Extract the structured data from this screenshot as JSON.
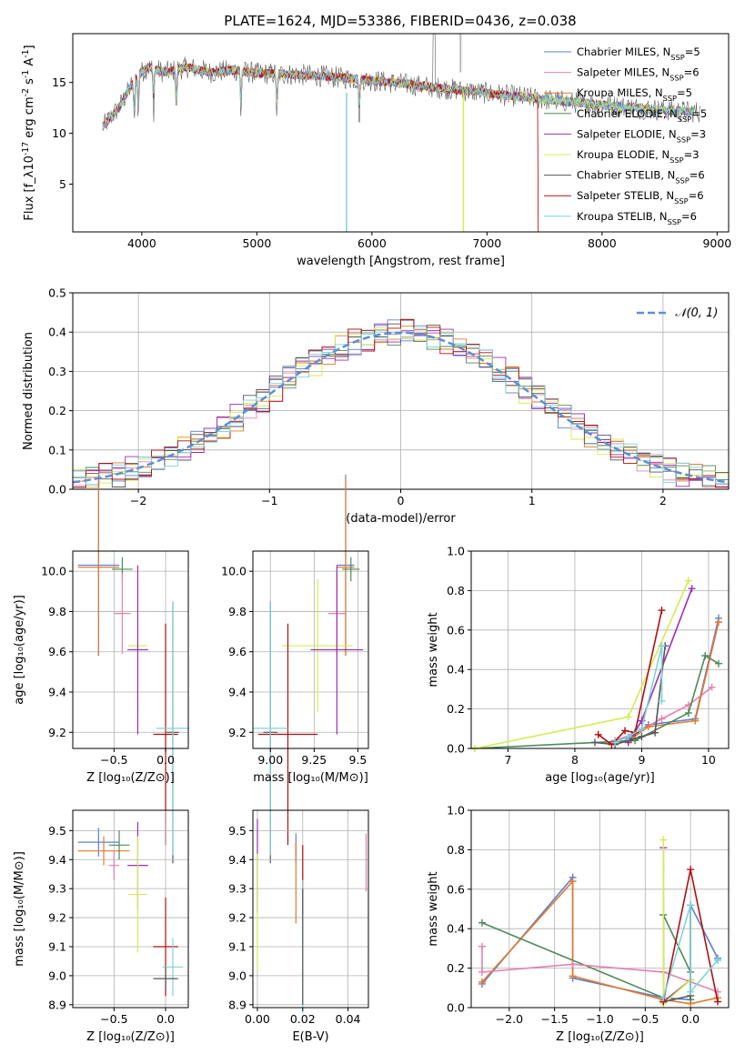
{
  "figure_title": "PLATE=1624, MJD=53386, FIBERID=0436, z=0.038",
  "chart_data": [
    {
      "id": "spectrum",
      "type": "line",
      "title": "PLATE=1624, MJD=53386, FIBERID=0436, z=0.038",
      "xlabel": "wavelength [Angstrom, rest frame]",
      "ylabel": "Flux [f_λ10^-17 erg cm^-2 s^-1 A^-1]",
      "xlim": [
        3400,
        9100
      ],
      "ylim": [
        0.3,
        19.8
      ],
      "xticks": [
        4000,
        5000,
        6000,
        7000,
        8000,
        9000
      ],
      "yticks": [
        5,
        10,
        15
      ],
      "grid": false,
      "legend_position": "top-right",
      "series": [
        {
          "name": "Chabrier MILES, N_SSP=5",
          "color": "#5b7fd6"
        },
        {
          "name": "Salpeter MILES, N_SSP=6",
          "color": "#e580b1"
        },
        {
          "name": "Kroupa MILES, N_SSP=5",
          "color": "#e27a2d"
        },
        {
          "name": "Chabrier ELODIE, N_SSP=5",
          "color": "#4f8a57"
        },
        {
          "name": "Salpeter ELODIE, N_SSP=3",
          "color": "#9c2fb5"
        },
        {
          "name": "Kroupa ELODIE, N_SSP=3",
          "color": "#d6eb4e"
        },
        {
          "name": "Chabrier STELIB, N_SSP=6",
          "color": "#555555"
        },
        {
          "name": "Salpeter STELIB, N_SSP=6",
          "color": "#b01010"
        },
        {
          "name": "Kroupa STELIB, N_SSP=6",
          "color": "#7fd3da"
        }
      ],
      "continuum": {
        "x": [
          3650,
          3800,
          3950,
          4050,
          4200,
          4400,
          4600,
          4800,
          5000,
          5300,
          5600,
          6000,
          6400,
          6800,
          7200,
          7600,
          8000,
          8400,
          8800
        ],
        "y": [
          10.5,
          12.5,
          15.5,
          16.5,
          16.0,
          16.5,
          16.0,
          16.2,
          15.9,
          15.8,
          15.6,
          15.2,
          14.7,
          14.2,
          13.7,
          13.2,
          12.8,
          12.4,
          12.1
        ]
      }
    },
    {
      "id": "residuals",
      "type": "line",
      "xlabel": "(data-model)/error",
      "ylabel": "Normed distribution",
      "xlim": [
        -2.5,
        2.5
      ],
      "ylim": [
        0.0,
        0.5
      ],
      "xticks": [
        -2,
        -1,
        0,
        1,
        2
      ],
      "yticks": [
        0.0,
        0.1,
        0.2,
        0.3,
        0.4,
        0.5
      ],
      "grid": true,
      "legend_position": "top-right",
      "reference_curve": {
        "name": "N(0,1)",
        "mean": 0,
        "sigma": 1,
        "color": "#5b8fd6",
        "style": "dashed"
      }
    },
    {
      "id": "age-vs-Z",
      "type": "scatter",
      "xlabel": "Z [log10(Z/Z⊙)]",
      "ylabel": "age [log10(age/yr)]",
      "xlim": [
        -0.9,
        0.22
      ],
      "ylim": [
        9.12,
        10.1
      ],
      "xticks": [
        -0.5,
        0.0
      ],
      "yticks": [
        9.2,
        9.4,
        9.6,
        9.8,
        10.0
      ],
      "grid": true,
      "points": [
        {
          "color": "#5b7fd6",
          "x": -0.65,
          "xerr": 0.2,
          "y": 10.03,
          "yerr": 0.45
        },
        {
          "color": "#e27a2d",
          "x": -0.65,
          "xerr": 0.2,
          "y": 10.02,
          "yerr": 0.44
        },
        {
          "color": "#4f8a57",
          "x": -0.42,
          "xerr": 0.1,
          "y": 10.01,
          "yerr": 0.06
        },
        {
          "color": "#e580b1",
          "x": -0.42,
          "xerr": 0.08,
          "y": 9.79,
          "yerr": 0.2
        },
        {
          "color": "#d6eb4e",
          "x": -0.27,
          "xerr": 0.09,
          "y": 9.63,
          "yerr": 0.33
        },
        {
          "color": "#9c2fb5",
          "x": -0.27,
          "xerr": 0.1,
          "y": 9.61,
          "yerr": 0.42
        },
        {
          "color": "#b01010",
          "x": 0.0,
          "xerr": 0.12,
          "y": 9.19,
          "yerr": 0.55
        },
        {
          "color": "#555555",
          "x": 0.07,
          "xerr": 0.06,
          "y": 9.2,
          "yerr": 0.65
        },
        {
          "color": "#7fd3da",
          "x": 0.07,
          "xerr": 0.16,
          "y": 9.22,
          "yerr": 0.63
        }
      ]
    },
    {
      "id": "age-vs-mass",
      "type": "scatter",
      "xlabel": "mass [log10(M/M⊙)]",
      "ylabel": "",
      "xlim": [
        8.9,
        9.56
      ],
      "ylim": [
        9.12,
        10.1
      ],
      "xticks": [
        9.0,
        9.25,
        9.5
      ],
      "yticks": [
        9.2,
        9.4,
        9.6,
        9.8,
        10.0
      ],
      "grid": true,
      "points": [
        {
          "color": "#5b7fd6",
          "x": 9.43,
          "xerr": 0.05,
          "y": 10.03,
          "yerr": 0.45
        },
        {
          "color": "#e27a2d",
          "x": 9.43,
          "xerr": 0.05,
          "y": 10.02,
          "yerr": 0.44
        },
        {
          "color": "#4f8a57",
          "x": 9.46,
          "xerr": 0.05,
          "y": 10.01,
          "yerr": 0.06
        },
        {
          "color": "#e580b1",
          "x": 9.38,
          "xerr": 0.05,
          "y": 9.79,
          "yerr": 0.2
        },
        {
          "color": "#d6eb4e",
          "x": 9.27,
          "xerr": 0.2,
          "y": 9.63,
          "yerr": 0.33
        },
        {
          "color": "#9c2fb5",
          "x": 9.38,
          "xerr": 0.15,
          "y": 9.61,
          "yerr": 0.42
        },
        {
          "color": "#b01010",
          "x": 9.1,
          "xerr": 0.17,
          "y": 9.19,
          "yerr": 0.55
        },
        {
          "color": "#555555",
          "x": 9.0,
          "xerr": 0.04,
          "y": 9.2,
          "yerr": 0.65
        },
        {
          "color": "#7fd3da",
          "x": 9.0,
          "xerr": 0.1,
          "y": 9.22,
          "yerr": 0.63
        }
      ]
    },
    {
      "id": "mass-weight-vs-age",
      "type": "line",
      "xlabel": "age [log10(age/yr)]",
      "ylabel": "mass weight",
      "xlim": [
        6.45,
        10.3
      ],
      "ylim": [
        0.0,
        1.0
      ],
      "xticks": [
        7,
        8,
        9,
        10
      ],
      "yticks": [
        0.0,
        0.2,
        0.4,
        0.6,
        0.8,
        1.0
      ],
      "grid": true,
      "series": [
        {
          "color": "#5b7fd6",
          "x": [
            8.8,
            8.85,
            9.1,
            9.8,
            10.15
          ],
          "y": [
            0.05,
            0.06,
            0.12,
            0.15,
            0.66
          ]
        },
        {
          "color": "#e580b1",
          "x": [
            8.6,
            8.85,
            9.3,
            9.7,
            10.05
          ],
          "y": [
            0.04,
            0.07,
            0.15,
            0.22,
            0.31
          ]
        },
        {
          "color": "#e27a2d",
          "x": [
            8.8,
            8.85,
            9.1,
            9.8,
            10.15
          ],
          "y": [
            0.04,
            0.05,
            0.11,
            0.14,
            0.64
          ]
        },
        {
          "color": "#4f8a57",
          "x": [
            6.5,
            8.9,
            9.7,
            9.95,
            10.15
          ],
          "y": [
            0.0,
            0.04,
            0.18,
            0.47,
            0.43
          ]
        },
        {
          "color": "#9c2fb5",
          "x": [
            8.8,
            9.0,
            9.75
          ],
          "y": [
            0.03,
            0.14,
            0.81
          ]
        },
        {
          "color": "#d6eb4e",
          "x": [
            6.5,
            8.8,
            9.7
          ],
          "y": [
            0.0,
            0.16,
            0.85
          ]
        },
        {
          "color": "#555555",
          "x": [
            8.3,
            8.6,
            8.8,
            9.0,
            9.2,
            9.35
          ],
          "y": [
            0.03,
            0.02,
            0.04,
            0.06,
            0.08,
            0.52
          ]
        },
        {
          "color": "#b01010",
          "x": [
            8.35,
            8.55,
            8.75,
            8.9,
            9.3
          ],
          "y": [
            0.07,
            0.02,
            0.09,
            0.08,
            0.7
          ]
        },
        {
          "color": "#7fd3da",
          "x": [
            8.6,
            8.8,
            9.0,
            9.3,
            9.3
          ],
          "y": [
            0.03,
            0.06,
            0.1,
            0.52,
            0.24
          ]
        }
      ]
    },
    {
      "id": "mass-vs-Z",
      "type": "scatter",
      "xlabel": "Z [log10(Z/Z⊙)]",
      "ylabel": "mass [log10(M/M⊙)]",
      "xlim": [
        -0.9,
        0.22
      ],
      "ylim": [
        8.89,
        9.57
      ],
      "xticks": [
        -0.5,
        0.0
      ],
      "yticks": [
        8.9,
        9.0,
        9.1,
        9.2,
        9.3,
        9.4,
        9.5
      ],
      "grid": true,
      "points": [
        {
          "color": "#5b7fd6",
          "x": -0.65,
          "xerr": 0.2,
          "y": 9.46,
          "yerr": 0.05
        },
        {
          "color": "#e27a2d",
          "x": -0.6,
          "xerr": 0.25,
          "y": 9.43,
          "yerr": 0.05
        },
        {
          "color": "#4f8a57",
          "x": -0.45,
          "xerr": 0.1,
          "y": 9.45,
          "yerr": 0.05
        },
        {
          "color": "#e580b1",
          "x": -0.5,
          "xerr": 0.05,
          "y": 9.38,
          "yerr": 0.05
        },
        {
          "color": "#9c2fb5",
          "x": -0.27,
          "xerr": 0.1,
          "y": 9.38,
          "yerr": 0.15
        },
        {
          "color": "#d6eb4e",
          "x": -0.27,
          "xerr": 0.09,
          "y": 9.28,
          "yerr": 0.2
        },
        {
          "color": "#b01010",
          "x": 0.0,
          "xerr": 0.12,
          "y": 9.1,
          "yerr": 0.17
        },
        {
          "color": "#7fd3da",
          "x": 0.07,
          "xerr": 0.1,
          "y": 9.03,
          "yerr": 0.1
        },
        {
          "color": "#555555",
          "x": 0.0,
          "xerr": 0.12,
          "y": 8.99,
          "yerr": 0.04
        }
      ]
    },
    {
      "id": "mass-vs-EBV",
      "type": "scatter",
      "xlabel": "E(B-V)",
      "ylabel": "",
      "xlim": [
        -0.002,
        0.049
      ],
      "ylim": [
        8.89,
        9.57
      ],
      "xticks": [
        0.0,
        0.02,
        0.04
      ],
      "yticks": [
        8.9,
        9.0,
        9.1,
        9.2,
        9.3,
        9.4,
        9.5
      ],
      "grid": true,
      "points": [
        {
          "color": "#9c2fb5",
          "x": 0.0,
          "y": 9.38,
          "yerr": 0.16
        },
        {
          "color": "#d6eb4e",
          "x": 0.0,
          "y": 9.22,
          "yerr": 0.2
        },
        {
          "color": "#5b7fd6",
          "x": 0.017,
          "y": 9.44,
          "yerr": 0.05
        },
        {
          "color": "#e27a2d",
          "x": 0.017,
          "y": 9.32,
          "yerr": 0.14
        },
        {
          "color": "#b01010",
          "x": 0.02,
          "y": 9.33,
          "yerr": 0.12
        },
        {
          "color": "#7fd3da",
          "x": 0.02,
          "y": 9.1,
          "yerr": 0.23
        },
        {
          "color": "#555555",
          "x": 0.02,
          "y": 9.1,
          "yerr": 0.2
        },
        {
          "color": "#e580b1",
          "x": 0.048,
          "y": 9.39,
          "yerr": 0.1
        }
      ]
    },
    {
      "id": "mass-weight-vs-Z",
      "type": "line",
      "xlabel": "Z [log10(Z/Z⊙)]",
      "ylabel": "mass weight",
      "xlim": [
        -2.42,
        0.42
      ],
      "ylim": [
        0.0,
        1.0
      ],
      "xticks": [
        -2.0,
        -1.5,
        -1.0,
        -0.5,
        0.0
      ],
      "yticks": [
        0.0,
        0.2,
        0.4,
        0.6,
        0.8,
        1.0
      ],
      "grid": true,
      "series": [
        {
          "color": "#5b7fd6",
          "x": [
            -2.3,
            -1.3,
            -1.3,
            -0.3,
            0.0,
            0.0,
            0.3
          ],
          "y": [
            0.12,
            0.66,
            0.15,
            0.05,
            0.04,
            0.52,
            0.25
          ]
        },
        {
          "color": "#e27a2d",
          "x": [
            -2.3,
            -1.3,
            -1.3,
            -0.3,
            0.0,
            0.3
          ],
          "y": [
            0.13,
            0.64,
            0.16,
            0.04,
            0.02,
            0.05
          ]
        },
        {
          "color": "#4f8a57",
          "x": [
            -2.3,
            -0.3,
            -0.3,
            0.0,
            0.0
          ],
          "y": [
            0.43,
            0.05,
            0.47,
            0.18,
            0.04
          ]
        },
        {
          "color": "#e580b1",
          "x": [
            -2.3,
            -2.3,
            -1.3,
            -0.3,
            0.3
          ],
          "y": [
            0.31,
            0.18,
            0.22,
            0.18,
            0.08
          ]
        },
        {
          "color": "#9c2fb5",
          "x": [
            -0.3,
            -0.3,
            0.0
          ],
          "y": [
            0.81,
            0.03,
            0.14
          ]
        },
        {
          "color": "#d6eb4e",
          "x": [
            -0.3,
            -0.3,
            0.0
          ],
          "y": [
            0.85,
            0.02,
            0.14
          ]
        },
        {
          "color": "#555555",
          "x": [
            -0.3,
            0.0,
            0.0
          ],
          "y": [
            0.03,
            0.06,
            0.52
          ]
        },
        {
          "color": "#b01010",
          "x": [
            -0.3,
            0.0,
            0.3
          ],
          "y": [
            0.03,
            0.7,
            0.03
          ]
        },
        {
          "color": "#7fd3da",
          "x": [
            -0.3,
            0.0,
            0.0,
            0.3,
            0.3
          ],
          "y": [
            0.05,
            0.52,
            0.08,
            0.24,
            0.24
          ]
        }
      ]
    }
  ]
}
